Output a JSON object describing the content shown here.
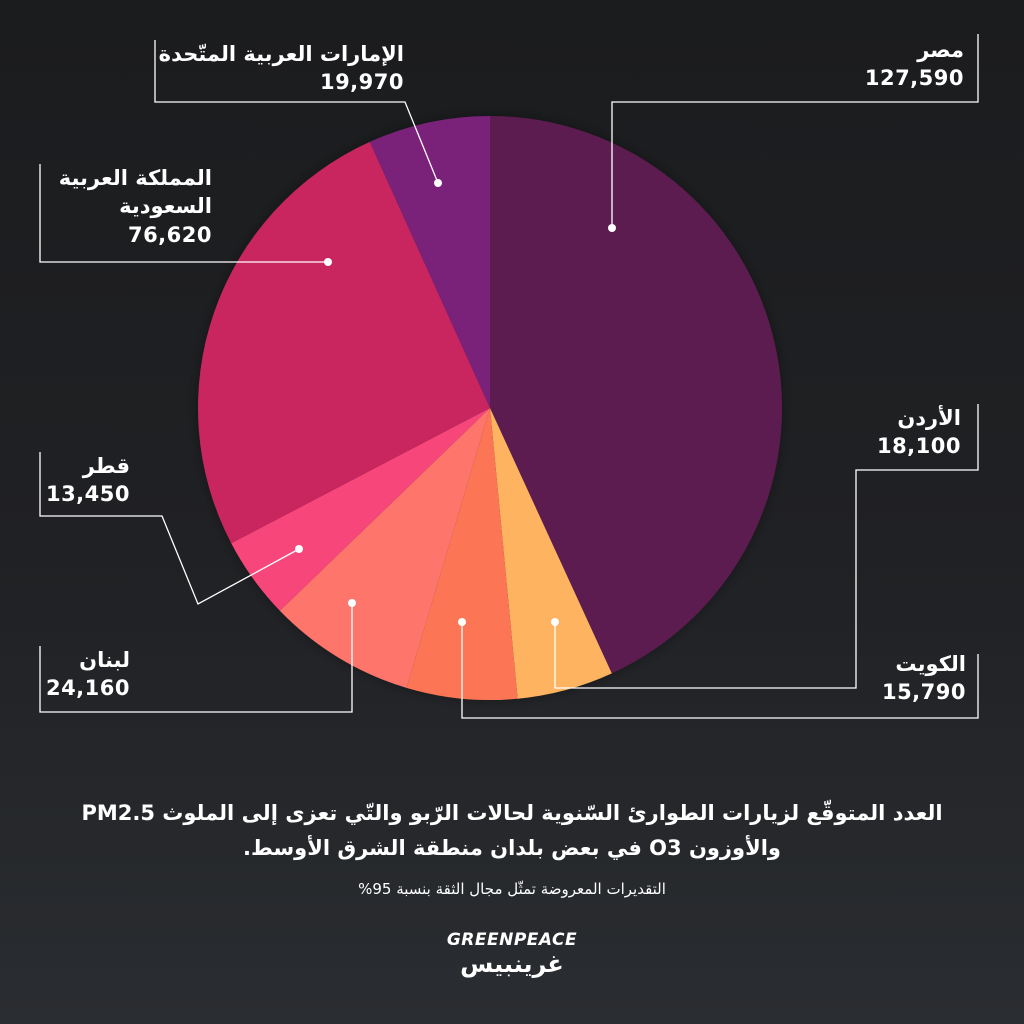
{
  "chart_data": {
    "type": "pie",
    "slices": [
      {
        "key": "egypt",
        "label": "مصر",
        "label_lines": [
          "مصر"
        ],
        "value_text": "127,590",
        "value": 127590,
        "color": "#5c1b4f"
      },
      {
        "key": "kuwait",
        "label": "الكويت",
        "label_lines": [
          "الكويت"
        ],
        "value_text": "15,790",
        "value": 15790,
        "color": "#fdb35f"
      },
      {
        "key": "jordan",
        "label": "الأردن",
        "label_lines": [
          "الأردن"
        ],
        "value_text": "18,100",
        "value": 18100,
        "color": "#fc7554"
      },
      {
        "key": "lebanon",
        "label": "لبنان",
        "label_lines": [
          "لبنان"
        ],
        "value_text": "24,160",
        "value": 24160,
        "color": "#fe756c"
      },
      {
        "key": "qatar",
        "label": "قطر",
        "label_lines": [
          "قطر"
        ],
        "value_text": "13,450",
        "value": 13450,
        "color": "#f7467a"
      },
      {
        "key": "ksa",
        "label": "المملكة العربية السعودية",
        "label_lines": [
          "المملكة العربية",
          "السعودية"
        ],
        "value_text": "76,620",
        "value": 76620,
        "color": "#c9265f"
      },
      {
        "key": "uae",
        "label": "الإمارات العربية المتّحدة",
        "label_lines": [
          "الإمارات العربية المتّحدة"
        ],
        "value_text": "19,970",
        "value": 19970,
        "color": "#7a2379"
      }
    ],
    "title": "العدد المتوقّع لزيارات الطوارئ السّنوية لحالات الرّبو والتّي تعزى إلى الملوث PM2.5 والأوزون O3  في بعض بلدان منطقة الشرق الأوسط.",
    "subtitle": "التقديرات المعروضة تمثّل مجال الثقة بنسبة 95%"
  },
  "caption": {
    "line1": "العدد المتوقّع لزيارات الطوارئ السّنوية لحالات الرّبو والتّي تعزى إلى الملوث PM2.5",
    "line2": "والأوزون O3  في بعض بلدان منطقة الشرق الأوسط.",
    "note": "التقديرات المعروضة تمثّل مجال الثقة بنسبة 95%"
  },
  "logo": {
    "en": "GREENPEACE",
    "ar": "غرينبيس"
  }
}
